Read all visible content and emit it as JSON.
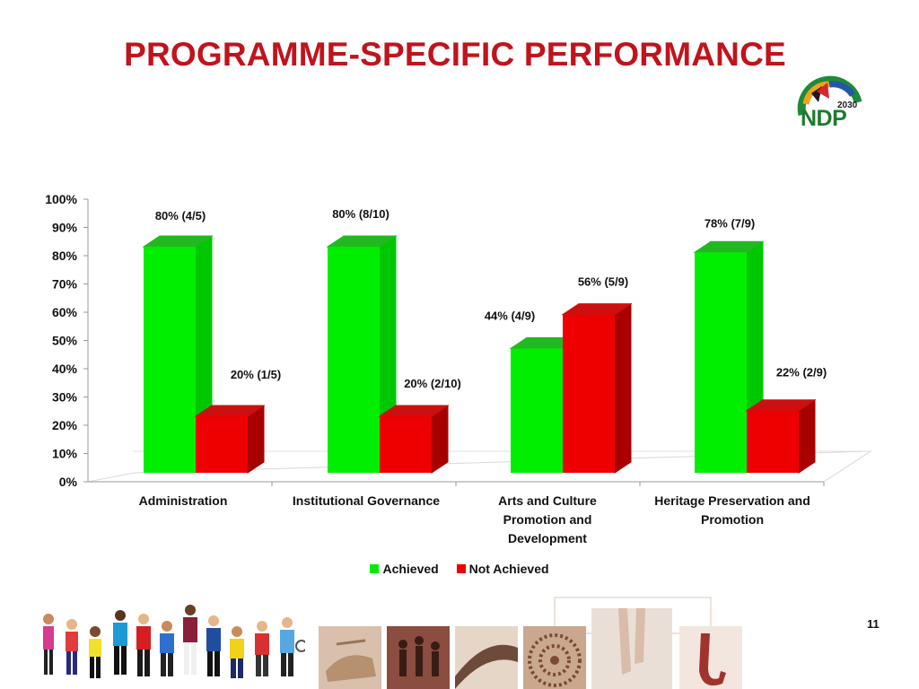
{
  "slide": {
    "title": "PROGRAMME-SPECIFIC PERFORMANCE",
    "page_number": "11",
    "logo": {
      "text": "NDP",
      "year": "2030"
    }
  },
  "colors": {
    "title": "#c0141c",
    "achieved": "#00ee00",
    "not_achieved": "#ee0000"
  },
  "legend": {
    "achieved_label": "Achieved",
    "not_achieved_label": "Not Achieved"
  },
  "chart_data": {
    "type": "bar",
    "categories": [
      [
        "Administration"
      ],
      [
        "Institutional Governance"
      ],
      [
        "Arts and Culture",
        "Promotion and",
        "Development"
      ],
      [
        "Heritage Preservation and",
        "Promotion"
      ]
    ],
    "series": [
      {
        "name": "Achieved",
        "color": "#00ee00",
        "values": [
          80,
          80,
          44,
          78
        ],
        "labels": [
          "80% (4/5)",
          "80% (8/10)",
          "44% (4/9)",
          "78% (7/9)"
        ]
      },
      {
        "name": "Not Achieved",
        "color": "#ee0000",
        "values": [
          20,
          20,
          56,
          22
        ],
        "labels": [
          "20% (1/5)",
          "20% (2/10)",
          "56% (5/9)",
          "22% (2/9)"
        ]
      }
    ],
    "yticks": [
      "0%",
      "10%",
      "20%",
      "30%",
      "40%",
      "50%",
      "60%",
      "70%",
      "80%",
      "90%",
      "100%"
    ],
    "ylim": [
      0,
      100
    ],
    "style": "3d-column",
    "legend_position": "bottom",
    "grid": false
  },
  "footer": {
    "photo_icons": [
      "hands-photo",
      "dancers-photo",
      "film-photo",
      "beadwork-photo",
      "ballet-photo",
      "saxophone-photo"
    ]
  }
}
